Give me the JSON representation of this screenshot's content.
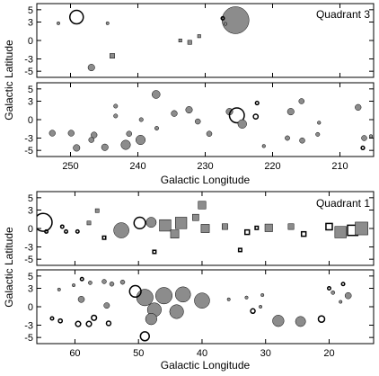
{
  "chart_data": [
    {
      "type": "scatter",
      "label": "Quadrant 3",
      "xlabel": "Galactic Longitude",
      "ylabel": "Galactic Latitude",
      "xlim": [
        255,
        205
      ],
      "xticks": [
        250,
        240,
        230,
        220,
        210
      ],
      "yticks": [
        5,
        3,
        0,
        -3,
        -5
      ],
      "panels": [
        {
          "ylim": [
            -6,
            6
          ],
          "points": [
            {
              "x": 249.1,
              "y": 3.8,
              "s": 2.0,
              "shape": "circle",
              "fill": false
            },
            {
              "x": 251.8,
              "y": 2.8,
              "s": 0.4,
              "shape": "circle",
              "fill": true
            },
            {
              "x": 244.5,
              "y": 2.8,
              "s": 0.45,
              "shape": "circle",
              "fill": true
            },
            {
              "x": 225.5,
              "y": 3.3,
              "s": 4.0,
              "shape": "circle",
              "fill": true
            },
            {
              "x": 227.4,
              "y": 3.6,
              "s": 0.45,
              "shape": "circle",
              "fill": false
            },
            {
              "x": 227.0,
              "y": 2.7,
              "s": 0.35,
              "shape": "circle",
              "fill": true
            },
            {
              "x": 232.3,
              "y": -0.3,
              "s": 0.6,
              "shape": "square",
              "fill": true
            },
            {
              "x": 233.7,
              "y": 0.0,
              "s": 0.35,
              "shape": "square",
              "fill": true
            },
            {
              "x": 230.9,
              "y": 0.7,
              "s": 0.4,
              "shape": "square",
              "fill": true
            },
            {
              "x": 243.8,
              "y": -2.5,
              "s": 0.7,
              "shape": "square",
              "fill": true
            },
            {
              "x": 246.9,
              "y": -4.4,
              "s": 1.0,
              "shape": "circle",
              "fill": true
            }
          ]
        },
        {
          "ylim": [
            -6,
            6
          ],
          "points": [
            {
              "x": 252.7,
              "y": -2.2,
              "s": 0.9,
              "shape": "circle",
              "fill": true
            },
            {
              "x": 249.9,
              "y": -2.2,
              "s": 0.9,
              "shape": "circle",
              "fill": true
            },
            {
              "x": 246.5,
              "y": -2.5,
              "s": 0.9,
              "shape": "circle",
              "fill": true
            },
            {
              "x": 246.9,
              "y": -3.3,
              "s": 0.8,
              "shape": "circle",
              "fill": true
            },
            {
              "x": 249.1,
              "y": -4.6,
              "s": 1.0,
              "shape": "circle",
              "fill": true
            },
            {
              "x": 244.9,
              "y": -4.5,
              "s": 1.0,
              "shape": "circle",
              "fill": true
            },
            {
              "x": 241.8,
              "y": -4.1,
              "s": 1.4,
              "shape": "circle",
              "fill": true
            },
            {
              "x": 239.6,
              "y": -3.3,
              "s": 1.4,
              "shape": "circle",
              "fill": true
            },
            {
              "x": 241.3,
              "y": -2.3,
              "s": 0.8,
              "shape": "circle",
              "fill": true
            },
            {
              "x": 237.3,
              "y": 4.1,
              "s": 1.2,
              "shape": "circle",
              "fill": true
            },
            {
              "x": 243.3,
              "y": 2.2,
              "s": 0.6,
              "shape": "circle",
              "fill": true
            },
            {
              "x": 243.3,
              "y": 0.6,
              "s": 0.6,
              "shape": "circle",
              "fill": true
            },
            {
              "x": 239.5,
              "y": 0.0,
              "s": 0.6,
              "shape": "circle",
              "fill": true
            },
            {
              "x": 237.2,
              "y": -1.4,
              "s": 0.6,
              "shape": "circle",
              "fill": true
            },
            {
              "x": 234.6,
              "y": 1.0,
              "s": 0.9,
              "shape": "circle",
              "fill": true
            },
            {
              "x": 232.4,
              "y": 1.6,
              "s": 1.0,
              "shape": "circle",
              "fill": true
            },
            {
              "x": 231.1,
              "y": -0.3,
              "s": 0.8,
              "shape": "circle",
              "fill": true
            },
            {
              "x": 229.4,
              "y": -2.3,
              "s": 0.8,
              "shape": "circle",
              "fill": true
            },
            {
              "x": 226.4,
              "y": 1.3,
              "s": 1.0,
              "shape": "circle",
              "fill": true
            },
            {
              "x": 225.3,
              "y": 0.7,
              "s": 2.2,
              "shape": "circle",
              "fill": false
            },
            {
              "x": 224.5,
              "y": -0.7,
              "s": 1.3,
              "shape": "circle",
              "fill": true
            },
            {
              "x": 222.3,
              "y": 2.7,
              "s": 0.5,
              "shape": "circle",
              "fill": false
            },
            {
              "x": 222.5,
              "y": 0.5,
              "s": 0.7,
              "shape": "circle",
              "fill": false
            },
            {
              "x": 217.3,
              "y": 1.3,
              "s": 1.0,
              "shape": "circle",
              "fill": true
            },
            {
              "x": 215.7,
              "y": 3.0,
              "s": 0.8,
              "shape": "circle",
              "fill": true
            },
            {
              "x": 221.3,
              "y": -4.3,
              "s": 0.5,
              "shape": "circle",
              "fill": true
            },
            {
              "x": 217.8,
              "y": -3.0,
              "s": 0.7,
              "shape": "circle",
              "fill": true
            },
            {
              "x": 215.6,
              "y": -3.4,
              "s": 0.8,
              "shape": "circle",
              "fill": true
            },
            {
              "x": 213.3,
              "y": -2.4,
              "s": 0.6,
              "shape": "circle",
              "fill": true
            },
            {
              "x": 213.1,
              "y": -0.5,
              "s": 0.5,
              "shape": "circle",
              "fill": true
            },
            {
              "x": 207.3,
              "y": 2.0,
              "s": 0.9,
              "shape": "circle",
              "fill": true
            },
            {
              "x": 206.4,
              "y": -3.0,
              "s": 0.8,
              "shape": "circle",
              "fill": true
            },
            {
              "x": 205.4,
              "y": -2.7,
              "s": 0.5,
              "shape": "circle",
              "fill": true
            },
            {
              "x": 206.6,
              "y": -4.6,
              "s": 0.5,
              "shape": "circle",
              "fill": false
            }
          ]
        }
      ]
    },
    {
      "type": "scatter",
      "label": "Quadrant 1",
      "xlabel": "Galactic Longitude",
      "ylabel": "Galactic Latitude",
      "xlim": [
        66,
        13
      ],
      "xticks": [
        60,
        50,
        40,
        30,
        20
      ],
      "yticks": [
        5,
        3,
        0,
        -3,
        -5
      ],
      "panels": [
        {
          "ylim": [
            -6,
            6
          ],
          "points": [
            {
              "x": 65.0,
              "y": 1.0,
              "s": 2.8,
              "shape": "circle",
              "fill": false
            },
            {
              "x": 52.7,
              "y": -0.3,
              "s": 2.4,
              "shape": "circle",
              "fill": true
            },
            {
              "x": 49.8,
              "y": 0.9,
              "s": 1.8,
              "shape": "circle",
              "fill": false
            },
            {
              "x": 48.0,
              "y": 1.0,
              "s": 1.6,
              "shape": "circle",
              "fill": true
            },
            {
              "x": 45.8,
              "y": 0.5,
              "s": 1.8,
              "shape": "square",
              "fill": true
            },
            {
              "x": 43.3,
              "y": 0.9,
              "s": 1.8,
              "shape": "square",
              "fill": true
            },
            {
              "x": 44.3,
              "y": -0.9,
              "s": 1.3,
              "shape": "square",
              "fill": true
            },
            {
              "x": 41.0,
              "y": 1.8,
              "s": 1.0,
              "shape": "square",
              "fill": true
            },
            {
              "x": 40.0,
              "y": 3.8,
              "s": 1.2,
              "shape": "square",
              "fill": true
            },
            {
              "x": 39.5,
              "y": 0.0,
              "s": 1.3,
              "shape": "square",
              "fill": true
            },
            {
              "x": 36.4,
              "y": 0.3,
              "s": 0.9,
              "shape": "square",
              "fill": true
            },
            {
              "x": 32.9,
              "y": -0.6,
              "s": 0.7,
              "shape": "square",
              "fill": false
            },
            {
              "x": 31.4,
              "y": 0.1,
              "s": 0.5,
              "shape": "square",
              "fill": false
            },
            {
              "x": 29.5,
              "y": 0.1,
              "s": 1.2,
              "shape": "square",
              "fill": true
            },
            {
              "x": 26.0,
              "y": 0.3,
              "s": 0.9,
              "shape": "square",
              "fill": true
            },
            {
              "x": 24.0,
              "y": -0.9,
              "s": 0.7,
              "shape": "square",
              "fill": false
            },
            {
              "x": 20.0,
              "y": 0.3,
              "s": 1.0,
              "shape": "square",
              "fill": false
            },
            {
              "x": 18.2,
              "y": -0.6,
              "s": 1.8,
              "shape": "square",
              "fill": true
            },
            {
              "x": 16.3,
              "y": -0.3,
              "s": 1.6,
              "shape": "square",
              "fill": false
            },
            {
              "x": 14.9,
              "y": 0.0,
              "s": 2.0,
              "shape": "square",
              "fill": true
            },
            {
              "x": 56.5,
              "y": 2.9,
              "s": 0.6,
              "shape": "square",
              "fill": true
            },
            {
              "x": 57.8,
              "y": 0.9,
              "s": 0.6,
              "shape": "square",
              "fill": true
            },
            {
              "x": 55.4,
              "y": -1.5,
              "s": 0.4,
              "shape": "square",
              "fill": false
            },
            {
              "x": 59.6,
              "y": -0.5,
              "s": 0.4,
              "shape": "circle",
              "fill": false
            },
            {
              "x": 61.4,
              "y": -0.5,
              "s": 0.5,
              "shape": "circle",
              "fill": false
            },
            {
              "x": 64.5,
              "y": -0.5,
              "s": 0.5,
              "shape": "circle",
              "fill": false
            },
            {
              "x": 62.0,
              "y": 0.3,
              "s": 0.4,
              "shape": "circle",
              "fill": false
            },
            {
              "x": 34.0,
              "y": -3.5,
              "s": 0.5,
              "shape": "square",
              "fill": false
            },
            {
              "x": 47.5,
              "y": -3.8,
              "s": 0.4,
              "shape": "square",
              "fill": false
            }
          ]
        },
        {
          "ylim": [
            -6,
            6
          ],
          "points": [
            {
              "x": 49.0,
              "y": 1.5,
              "s": 2.6,
              "shape": "circle",
              "fill": true
            },
            {
              "x": 46.0,
              "y": 1.8,
              "s": 2.6,
              "shape": "circle",
              "fill": true
            },
            {
              "x": 43.0,
              "y": 2.0,
              "s": 2.4,
              "shape": "circle",
              "fill": true
            },
            {
              "x": 47.5,
              "y": -0.5,
              "s": 2.2,
              "shape": "circle",
              "fill": true
            },
            {
              "x": 44.0,
              "y": -0.8,
              "s": 2.2,
              "shape": "circle",
              "fill": true
            },
            {
              "x": 40.0,
              "y": 1.0,
              "s": 2.4,
              "shape": "circle",
              "fill": true
            },
            {
              "x": 50.5,
              "y": 2.5,
              "s": 1.8,
              "shape": "circle",
              "fill": false
            },
            {
              "x": 48.0,
              "y": -2.0,
              "s": 1.8,
              "shape": "circle",
              "fill": true
            },
            {
              "x": 28.0,
              "y": -2.3,
              "s": 1.8,
              "shape": "circle",
              "fill": true
            },
            {
              "x": 24.5,
              "y": -2.4,
              "s": 1.6,
              "shape": "circle",
              "fill": true
            },
            {
              "x": 49.0,
              "y": -4.8,
              "s": 1.4,
              "shape": "circle",
              "fill": false
            },
            {
              "x": 21.2,
              "y": -2.0,
              "s": 1.0,
              "shape": "circle",
              "fill": false
            },
            {
              "x": 59.0,
              "y": 1.2,
              "s": 1.0,
              "shape": "circle",
              "fill": true
            },
            {
              "x": 55.0,
              "y": 0.2,
              "s": 0.9,
              "shape": "circle",
              "fill": true
            },
            {
              "x": 57.0,
              "y": -1.8,
              "s": 0.8,
              "shape": "circle",
              "fill": false
            },
            {
              "x": 59.5,
              "y": -2.8,
              "s": 0.8,
              "shape": "circle",
              "fill": false
            },
            {
              "x": 57.8,
              "y": -2.8,
              "s": 0.8,
              "shape": "circle",
              "fill": false
            },
            {
              "x": 54.7,
              "y": -2.7,
              "s": 0.7,
              "shape": "circle",
              "fill": false
            },
            {
              "x": 62.3,
              "y": -2.3,
              "s": 0.6,
              "shape": "circle",
              "fill": false
            },
            {
              "x": 63.6,
              "y": -1.9,
              "s": 0.5,
              "shape": "circle",
              "fill": false
            },
            {
              "x": 55.4,
              "y": 4.1,
              "s": 0.7,
              "shape": "circle",
              "fill": true
            },
            {
              "x": 54.2,
              "y": 3.7,
              "s": 0.7,
              "shape": "circle",
              "fill": true
            },
            {
              "x": 52.5,
              "y": 4.0,
              "s": 0.7,
              "shape": "circle",
              "fill": true
            },
            {
              "x": 57.6,
              "y": 3.9,
              "s": 0.6,
              "shape": "circle",
              "fill": true
            },
            {
              "x": 58.9,
              "y": 4.5,
              "s": 0.5,
              "shape": "circle",
              "fill": false
            },
            {
              "x": 60.2,
              "y": 3.5,
              "s": 0.4,
              "shape": "circle",
              "fill": true
            },
            {
              "x": 62.5,
              "y": 2.8,
              "s": 0.4,
              "shape": "circle",
              "fill": true
            },
            {
              "x": 33.0,
              "y": 1.5,
              "s": 0.5,
              "shape": "circle",
              "fill": true
            },
            {
              "x": 30.5,
              "y": 1.9,
              "s": 0.5,
              "shape": "circle",
              "fill": true
            },
            {
              "x": 30.8,
              "y": 0.0,
              "s": 0.4,
              "shape": "circle",
              "fill": true
            },
            {
              "x": 35.8,
              "y": 1.2,
              "s": 0.4,
              "shape": "circle",
              "fill": true
            },
            {
              "x": 32.0,
              "y": -0.7,
              "s": 0.7,
              "shape": "circle",
              "fill": false
            },
            {
              "x": 19.4,
              "y": 2.3,
              "s": 0.6,
              "shape": "circle",
              "fill": true
            },
            {
              "x": 18.2,
              "y": 0.8,
              "s": 0.4,
              "shape": "circle",
              "fill": true
            },
            {
              "x": 17.0,
              "y": 1.8,
              "s": 1.0,
              "shape": "circle",
              "fill": true
            },
            {
              "x": 17.8,
              "y": 3.7,
              "s": 0.4,
              "shape": "circle",
              "fill": false
            },
            {
              "x": 20.0,
              "y": 3.0,
              "s": 0.3,
              "shape": "circle",
              "fill": false
            }
          ]
        }
      ]
    }
  ]
}
